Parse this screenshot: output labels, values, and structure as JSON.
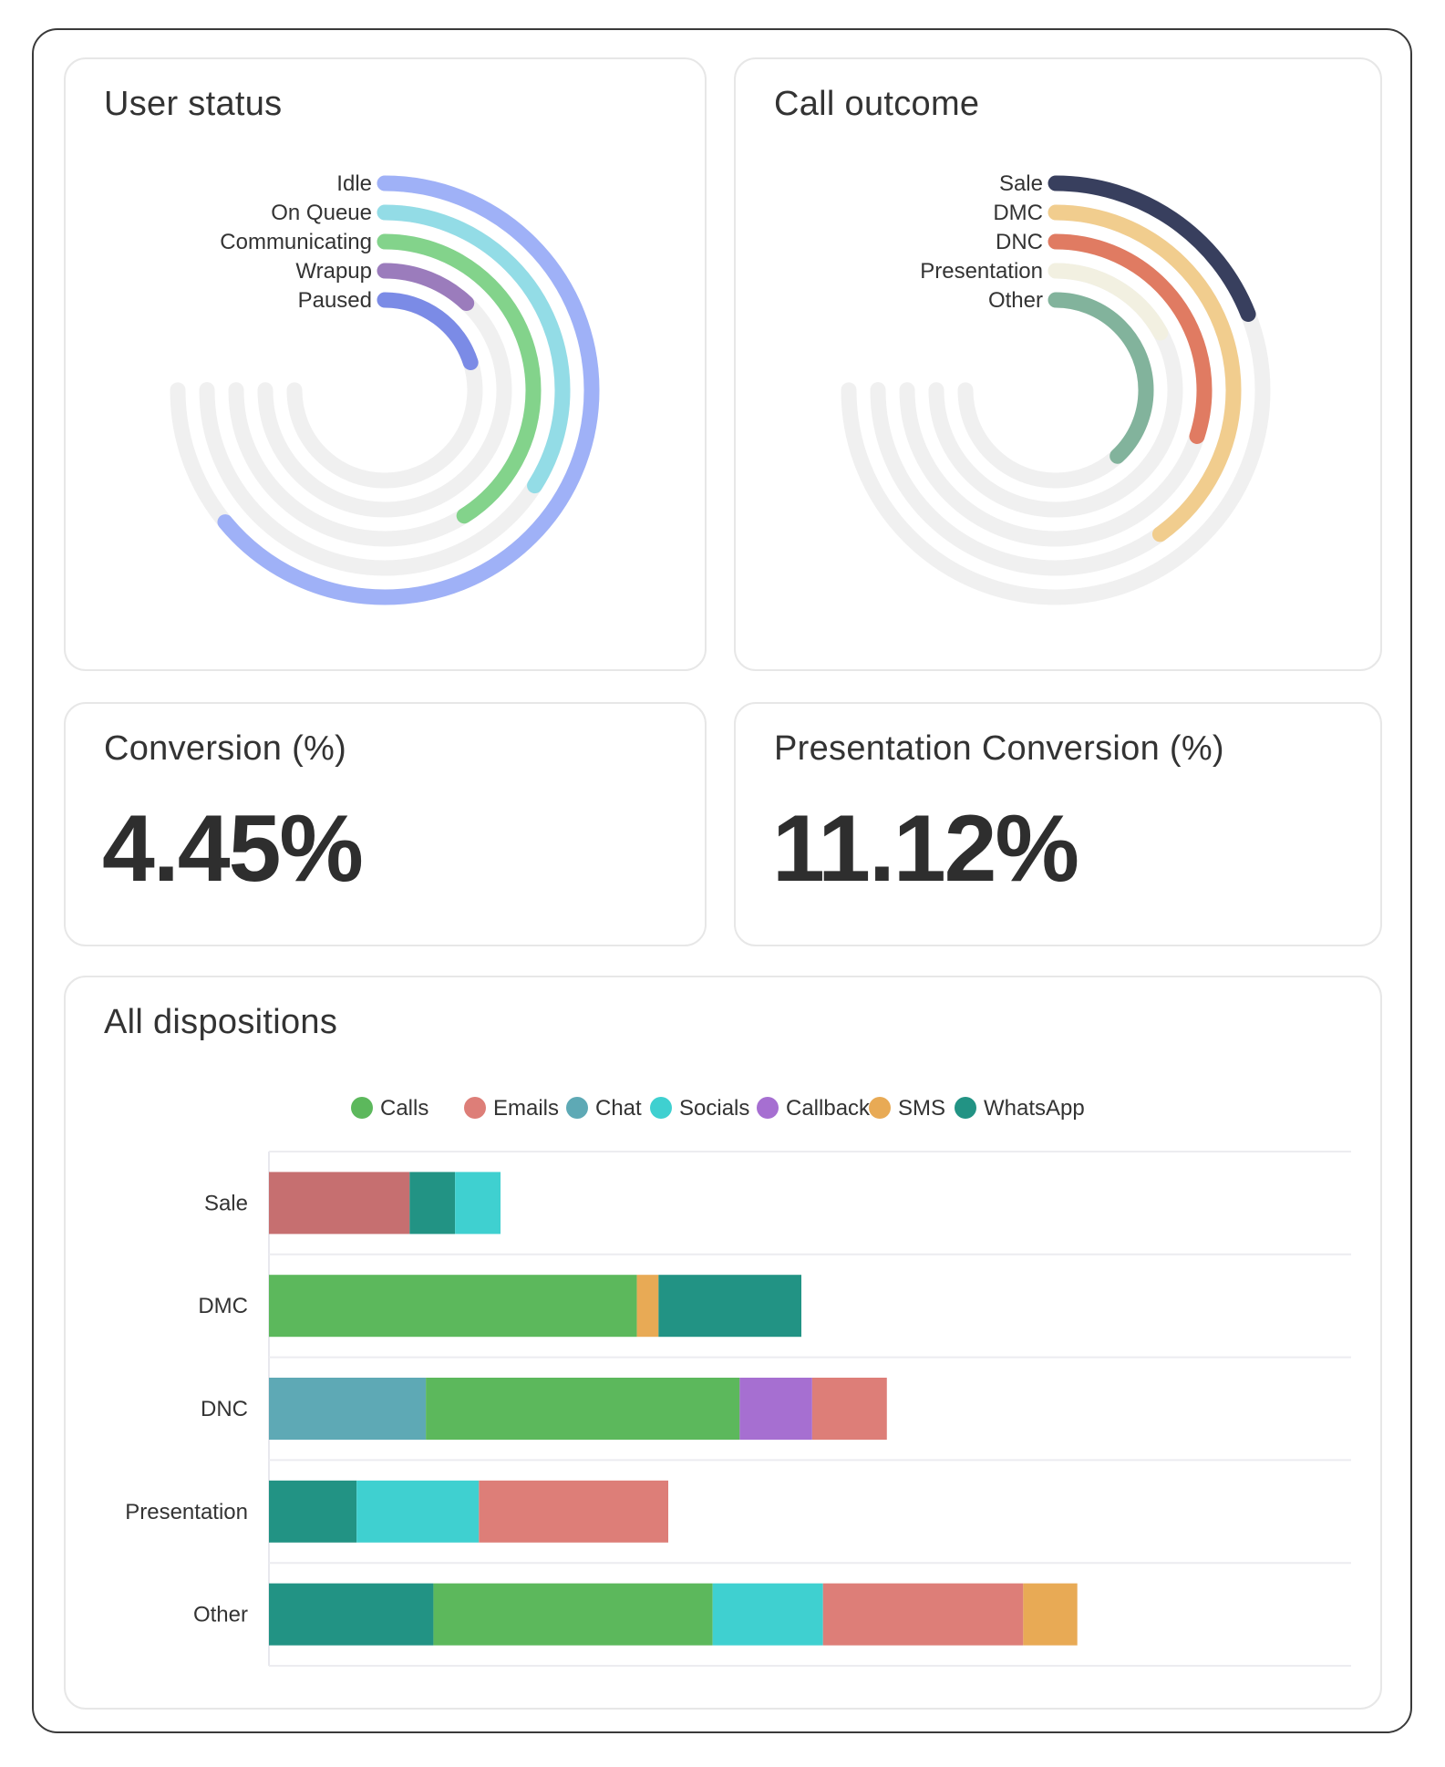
{
  "user_status": {
    "title": "User status",
    "items": [
      {
        "label": "Idle",
        "value": 0.64,
        "color": "#9fb1f7"
      },
      {
        "label": "On Queue",
        "value": 0.34,
        "color": "#93dce6"
      },
      {
        "label": "Communicating",
        "value": 0.41,
        "color": "#83d38b"
      },
      {
        "label": "Wrapup",
        "value": 0.12,
        "color": "#9b7cbc"
      },
      {
        "label": "Paused",
        "value": 0.2,
        "color": "#7b8be6"
      }
    ],
    "track_color": "#f0f0f0"
  },
  "call_outcome": {
    "title": "Call outcome",
    "items": [
      {
        "label": "Sale",
        "value": 0.19,
        "color": "#383f5e"
      },
      {
        "label": "DMC",
        "value": 0.4,
        "color": "#f1cd8e"
      },
      {
        "label": "DNC",
        "value": 0.3,
        "color": "#e07b62"
      },
      {
        "label": "Presentation",
        "value": 0.17,
        "color": "#f2f0e1"
      },
      {
        "label": "Other",
        "value": 0.38,
        "color": "#82b39c"
      }
    ],
    "track_color": "#f0f0f0"
  },
  "conversion": {
    "title": "Conversion (%)",
    "value": "4.45%"
  },
  "presentation_conversion": {
    "title": "Presentation Conversion (%)",
    "value": "11.12%"
  },
  "all_dispositions": {
    "title": "All dispositions",
    "chart_data": {
      "type": "bar",
      "orientation": "horizontal",
      "stacked": true,
      "categories": [
        "Sale",
        "DMC",
        "DNC",
        "Presentation",
        "Other"
      ],
      "legend": [
        {
          "name": "Calls",
          "color": "#5cb85c"
        },
        {
          "name": "Emails",
          "color": "#dd7e78"
        },
        {
          "name": "Chat",
          "color": "#5ea9b5"
        },
        {
          "name": "Socials",
          "color": "#3fd0d0"
        },
        {
          "name": "Callback",
          "color": "#a66fd1"
        },
        {
          "name": "SMS",
          "color": "#e8aa55"
        },
        {
          "name": "WhatsApp",
          "color": "#229384"
        }
      ],
      "bars": [
        {
          "category": "Sale",
          "segments": [
            {
              "series": "Emails",
              "value": 13,
              "color": "#c66f70"
            },
            {
              "series": "WhatsApp",
              "value": 4.2
            },
            {
              "series": "Socials",
              "value": 4.2
            }
          ]
        },
        {
          "category": "DMC",
          "segments": [
            {
              "series": "Calls",
              "value": 34
            },
            {
              "series": "SMS",
              "value": 2
            },
            {
              "series": "WhatsApp",
              "value": 13.2
            }
          ]
        },
        {
          "category": "DNC",
          "segments": [
            {
              "series": "Chat",
              "value": 14.5
            },
            {
              "series": "Calls",
              "value": 29
            },
            {
              "series": "Callback",
              "value": 6.7
            },
            {
              "series": "Emails",
              "value": 6.9
            }
          ]
        },
        {
          "category": "Presentation",
          "segments": [
            {
              "series": "WhatsApp",
              "value": 8.1
            },
            {
              "series": "Socials",
              "value": 11.3
            },
            {
              "series": "Emails",
              "value": 17.5
            }
          ]
        },
        {
          "category": "Other",
          "segments": [
            {
              "series": "WhatsApp",
              "value": 15.2
            },
            {
              "series": "Calls",
              "value": 25.8
            },
            {
              "series": "Socials",
              "value": 10.2
            },
            {
              "series": "Emails",
              "value": 18.5
            },
            {
              "series": "SMS",
              "value": 5
            }
          ]
        }
      ],
      "xlim": [
        0,
        100
      ],
      "grid": true,
      "legend_position": "top-center"
    }
  }
}
